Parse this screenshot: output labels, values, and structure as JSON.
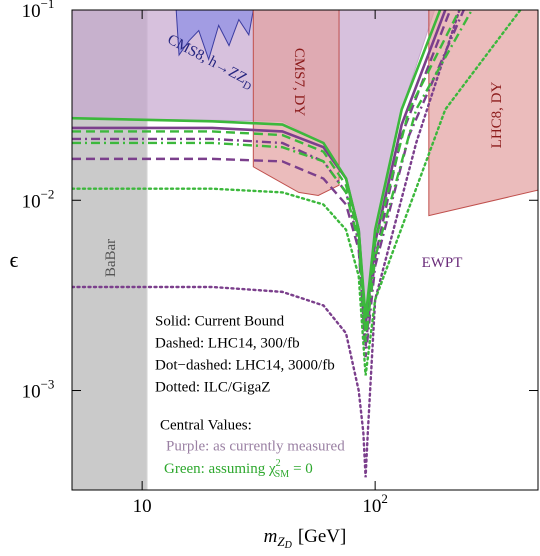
{
  "chart_data": {
    "type": "line",
    "xlog": true,
    "ylog": true,
    "xlim": [
      5,
      500
    ],
    "ylim": [
      0.0003,
      0.1
    ],
    "xticks": [
      10,
      {
        "value": 100,
        "label": "10",
        "exponent": "2"
      }
    ],
    "yticks": [
      {
        "value": 0.1,
        "label": "10",
        "exponent": "−1"
      },
      {
        "value": 0.01,
        "label": "10",
        "exponent": "−2"
      },
      {
        "value": 0.001,
        "label": "10",
        "exponent": "−3"
      }
    ],
    "x_label": {
      "base": "m",
      "sub": "Z",
      "subsub": "D",
      "unit": "[GeV]"
    },
    "y_label": "ϵ",
    "regions": [
      {
        "name": "BaBar",
        "color": "#b4b4b4",
        "stroke": "#d8d8d8",
        "x": [
          5,
          10.5,
          10.5,
          5
        ],
        "y": [
          0.0003,
          0.0003,
          0.1,
          0.1
        ]
      },
      {
        "name": "EWPT",
        "color": "#c6a6cf",
        "stroke": "#c6a6cf",
        "x": [
          5,
          40,
          60,
          75,
          85,
          91,
          100,
          130,
          180,
          5
        ],
        "y": [
          0.027,
          0.026,
          0.02,
          0.013,
          0.007,
          0.0022,
          0.006,
          0.03,
          0.1,
          0.1
        ]
      },
      {
        "name": "CMS8, h→ZZ",
        "name_sub": "D",
        "color": "#8c8ce6",
        "stroke": "#3c3ca0",
        "x": [
          14,
          14.4,
          15.9,
          17.5,
          19.3,
          21.3,
          23.6,
          26,
          28.7,
          30
        ],
        "y": [
          0.1,
          0.058,
          0.069,
          0.078,
          0.055,
          0.083,
          0.065,
          0.089,
          0.074,
          0.1
        ]
      },
      {
        "name": "CMS7, DY",
        "color": "#e3a0a0",
        "stroke": "#c0504d",
        "x": [
          30,
          30,
          47,
          57,
          70,
          70
        ],
        "y": [
          0.1,
          0.015,
          0.011,
          0.0106,
          0.012,
          0.1
        ]
      },
      {
        "name": "LHC8, DY",
        "color": "#e3a0a0",
        "stroke": "#c0504d",
        "x": [
          170,
          170,
          500,
          500
        ],
        "y": [
          0.1,
          0.0083,
          0.0113,
          0.1
        ]
      }
    ],
    "series": [
      {
        "color": "#7b3f8c",
        "style": "solid",
        "x": [
          5,
          20,
          40,
          60,
          75,
          85,
          91,
          100,
          130,
          200
        ],
        "values": [
          0.024,
          0.024,
          0.023,
          0.019,
          0.013,
          0.007,
          0.0022,
          0.006,
          0.025,
          0.1
        ]
      },
      {
        "color": "#7b3f8c",
        "style": "dashed",
        "x": [
          5,
          20,
          40,
          60,
          75,
          85,
          91,
          100,
          130,
          210
        ],
        "values": [
          0.0165,
          0.0165,
          0.016,
          0.013,
          0.0095,
          0.0055,
          0.0017,
          0.005,
          0.022,
          0.1
        ]
      },
      {
        "color": "#7b3f8c",
        "style": "dot-dashed",
        "x": [
          5,
          20,
          40,
          60,
          75,
          85,
          91,
          100,
          140,
          240
        ],
        "values": [
          0.021,
          0.021,
          0.02,
          0.016,
          0.011,
          0.006,
          0.0015,
          0.0045,
          0.022,
          0.1
        ]
      },
      {
        "color": "#7b3f8c",
        "style": "dotted",
        "x": [
          5,
          20,
          40,
          60,
          75,
          85,
          89,
          91,
          93,
          100,
          150,
          230
        ],
        "values": [
          0.0035,
          0.0035,
          0.0033,
          0.0028,
          0.002,
          0.001,
          0.0006,
          0.00035,
          0.0006,
          0.003,
          0.02,
          0.1
        ]
      },
      {
        "color": "#3cb83c",
        "style": "solid",
        "x": [
          5,
          20,
          40,
          60,
          75,
          85,
          91,
          100,
          130,
          190
        ],
        "values": [
          0.027,
          0.026,
          0.025,
          0.02,
          0.013,
          0.007,
          0.0024,
          0.007,
          0.03,
          0.1
        ]
      },
      {
        "color": "#3cb83c",
        "style": "dashed",
        "x": [
          5,
          20,
          40,
          60,
          75,
          85,
          91,
          100,
          140,
          230
        ],
        "values": [
          0.023,
          0.023,
          0.022,
          0.018,
          0.012,
          0.0065,
          0.002,
          0.006,
          0.03,
          0.1
        ]
      },
      {
        "color": "#3cb83c",
        "style": "dot-dashed",
        "x": [
          5,
          20,
          40,
          60,
          75,
          85,
          91,
          100,
          150,
          260
        ],
        "values": [
          0.02,
          0.02,
          0.019,
          0.016,
          0.011,
          0.006,
          0.0018,
          0.005,
          0.03,
          0.1
        ]
      },
      {
        "color": "#3cb83c",
        "style": "dotted",
        "x": [
          5,
          20,
          40,
          60,
          75,
          85,
          91,
          100,
          200,
          420
        ],
        "values": [
          0.0115,
          0.0115,
          0.011,
          0.0095,
          0.007,
          0.004,
          0.0012,
          0.003,
          0.03,
          0.1
        ]
      }
    ],
    "annotations": [
      "Solid: Current Bound",
      "Dashed: LHC14, 300/fb",
      "Dot−dashed: LHC14, 3000/fb",
      "Dotted: ILC/GigaZ",
      "Central Values:"
    ],
    "note_purple": {
      "text": "Purple: as currently measured",
      "color": "#9a80a3"
    },
    "note_green": {
      "text": "Green: assuming χ",
      "sup": "2",
      "sub": "SM",
      "rest": "= 0",
      "color": "#2ea82e"
    }
  }
}
